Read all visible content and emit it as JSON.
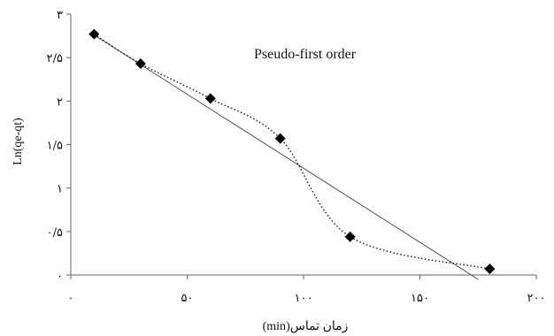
{
  "chart_data": {
    "type": "scatter",
    "title": "",
    "annotation": "Pseudo-first order",
    "xlabel": "زمان تماس(min)",
    "ylabel": "Ln(qe-qt)",
    "xlim": [
      0,
      200
    ],
    "ylim": [
      0,
      3
    ],
    "x_ticks": [
      0,
      50,
      100,
      150,
      200
    ],
    "x_tick_labels": [
      "۰",
      "۵۰",
      "۱۰۰",
      "۱۵۰",
      "۲۰۰"
    ],
    "y_ticks": [
      0,
      0.5,
      1,
      1.5,
      2,
      2.5,
      3
    ],
    "y_tick_labels": [
      "۰",
      "۰/۵",
      "۱",
      "۱/۵",
      "۲",
      "۲/۵",
      "۳"
    ],
    "grid": false,
    "legend": "none",
    "series": [
      {
        "x": [
          10,
          30,
          60,
          90,
          120,
          180
        ],
        "y": [
          2.77,
          2.43,
          2.03,
          1.57,
          0.44,
          0.07
        ]
      }
    ],
    "trendline": {
      "type": "linear",
      "x": [
        10,
        175
      ],
      "y": [
        2.76,
        -0.05
      ]
    },
    "colors": {
      "marker": "#000000",
      "trendline": "#555555",
      "smooth_line": "#222222"
    }
  }
}
